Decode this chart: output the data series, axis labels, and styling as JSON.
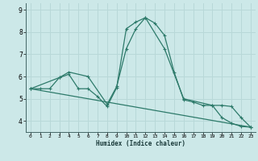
{
  "xlabel": "Humidex (Indice chaleur)",
  "bg_color": "#cce8e8",
  "grid_color": "#b8d8d8",
  "line_color": "#2d7a6a",
  "xlim": [
    -0.5,
    23.5
  ],
  "ylim": [
    3.5,
    9.3
  ],
  "yticks": [
    4,
    5,
    6,
    7,
    8,
    9
  ],
  "xticks": [
    0,
    1,
    2,
    3,
    4,
    5,
    6,
    7,
    8,
    9,
    10,
    11,
    12,
    13,
    14,
    15,
    16,
    17,
    18,
    19,
    20,
    21,
    22,
    23
  ],
  "series1_x": [
    0,
    1,
    2,
    3,
    4,
    5,
    6,
    7,
    8,
    9,
    10,
    11,
    12,
    13,
    14,
    15,
    16,
    17,
    18,
    19,
    20,
    21,
    22,
    23
  ],
  "series1_y": [
    5.45,
    5.45,
    5.45,
    5.95,
    6.1,
    5.45,
    5.45,
    5.1,
    4.65,
    5.5,
    8.15,
    8.45,
    8.65,
    8.4,
    7.85,
    6.2,
    4.95,
    4.85,
    4.7,
    4.7,
    4.15,
    3.9,
    3.75,
    3.72
  ],
  "series2_x": [
    0,
    3,
    4,
    6,
    8,
    9,
    10,
    11,
    12,
    14,
    16,
    19,
    20,
    21,
    22,
    23
  ],
  "series2_y": [
    5.45,
    5.95,
    6.2,
    6.0,
    4.75,
    5.55,
    7.25,
    8.15,
    8.65,
    7.25,
    5.0,
    4.7,
    4.7,
    4.65,
    4.15,
    3.72
  ],
  "series3_x": [
    0,
    23
  ],
  "series3_y": [
    5.45,
    3.72
  ]
}
